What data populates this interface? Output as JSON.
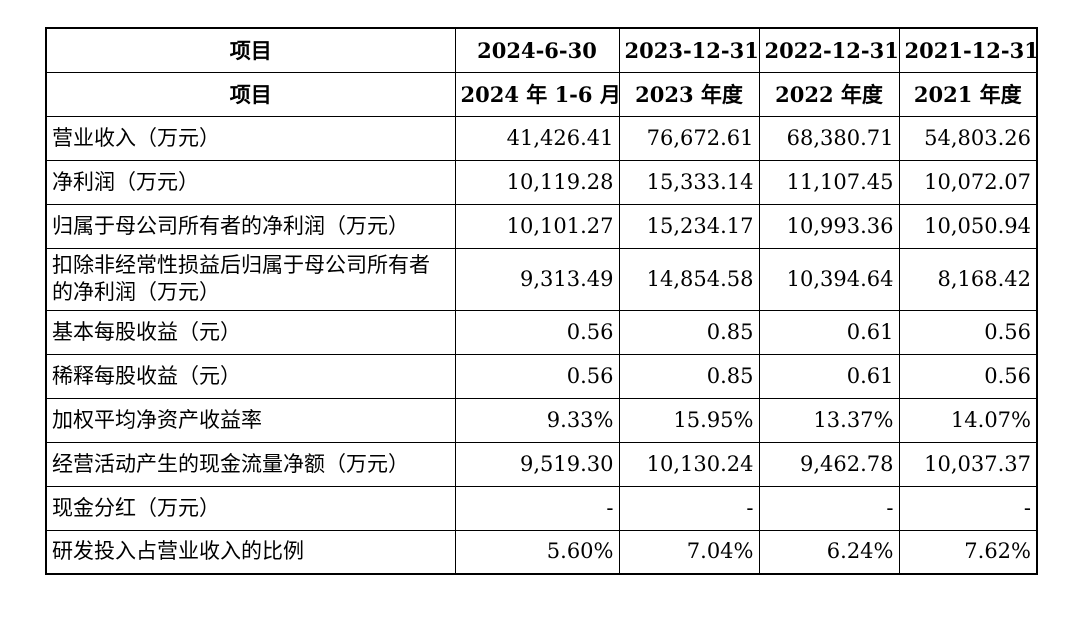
{
  "header": {
    "row1": [
      "项目",
      "2024-6-30",
      "2023-12-31",
      "2022-12-31",
      "2021-12-31"
    ],
    "row2": [
      "项目",
      "2024 年 1-6 月",
      "2023 年度",
      "2022 年度",
      "2021 年度"
    ]
  },
  "rows": [
    {
      "label": "营业收入（万元）",
      "values": [
        "41,426.41",
        "76,672.61",
        "68,380.71",
        "54,803.26"
      ]
    },
    {
      "label": "净利润（万元）",
      "values": [
        "10,119.28",
        "15,333.14",
        "11,107.45",
        "10,072.07"
      ]
    },
    {
      "label": "归属于母公司所有者的净利润（万元）",
      "values": [
        "10,101.27",
        "15,234.17",
        "10,993.36",
        "10,050.94"
      ]
    },
    {
      "label": "扣除非经常性损益后归属于母公司所有者的净利润（万元）",
      "values": [
        "9,313.49",
        "14,854.58",
        "10,394.64",
        "8,168.42"
      ]
    },
    {
      "label": "基本每股收益（元）",
      "values": [
        "0.56",
        "0.85",
        "0.61",
        "0.56"
      ]
    },
    {
      "label": "稀释每股收益（元）",
      "values": [
        "0.56",
        "0.85",
        "0.61",
        "0.56"
      ]
    },
    {
      "label": "加权平均净资产收益率",
      "values": [
        "9.33%",
        "15.95%",
        "13.37%",
        "14.07%"
      ]
    },
    {
      "label": "经营活动产生的现金流量净额（万元）",
      "values": [
        "9,519.30",
        "10,130.24",
        "9,462.78",
        "10,037.37"
      ]
    },
    {
      "label": "现金分红（万元）",
      "values": [
        "-",
        "-",
        "-",
        "-"
      ]
    },
    {
      "label": "研发投入占营业收入的比例",
      "values": [
        "5.60%",
        "7.04%",
        "6.24%",
        "7.62%"
      ]
    }
  ]
}
